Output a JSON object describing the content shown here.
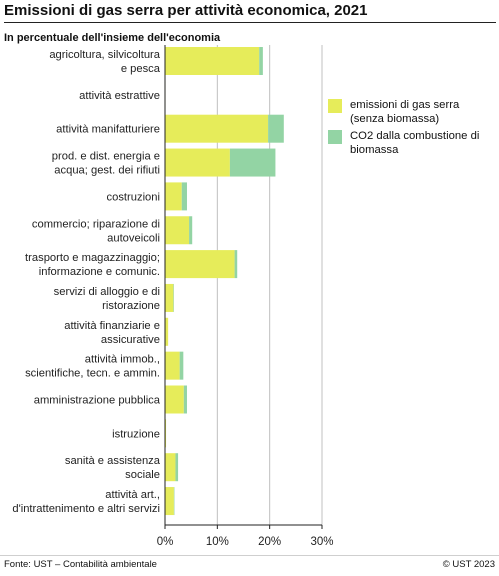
{
  "header": {
    "title": "Emissioni di gas serra per attività economica, 2021",
    "subtitle": "In percentuale dell'insieme dell'economia"
  },
  "colors": {
    "series1": "#e6ec5a",
    "series2": "#93d4a4",
    "grid": "#c0c0c0",
    "axis": "#222222"
  },
  "chart_data": {
    "type": "bar",
    "orientation": "horizontal",
    "stacked": true,
    "categories": [
      [
        "agricoltura, silvicoltura",
        "e pesca"
      ],
      [
        "attività estrattive"
      ],
      [
        "attività manifatturiere"
      ],
      [
        "prod. e dist. energia e",
        "acqua; gest. dei rifiuti"
      ],
      [
        "costruzioni"
      ],
      [
        "commercio; riparazione di",
        "autoveicoli"
      ],
      [
        "trasporto e magazzinaggio;",
        "informazione e comunic."
      ],
      [
        "servizi di alloggio e di",
        "ristorazione"
      ],
      [
        "attività finanziarie e",
        "assicurative"
      ],
      [
        "attività immob.,",
        "scientifiche, tecn. e ammin."
      ],
      [
        "amministrazione pubblica"
      ],
      [
        "istruzione"
      ],
      [
        "sanità e assistenza",
        "sociale"
      ],
      [
        "attività art.,",
        "d'intrattenimento e altri servizi"
      ]
    ],
    "series": [
      {
        "name": "emissioni di gas serra (senza biomassa)",
        "values": [
          18.0,
          0.1,
          19.7,
          12.4,
          3.2,
          4.6,
          13.3,
          1.6,
          0.6,
          2.8,
          3.6,
          0.2,
          2.0,
          1.7
        ]
      },
      {
        "name": "CO2 dalla combustione di biomassa",
        "values": [
          0.7,
          0.0,
          3.0,
          8.7,
          1.0,
          0.6,
          0.5,
          0.1,
          0.0,
          0.7,
          0.6,
          0.0,
          0.5,
          0.1
        ]
      }
    ],
    "xlim": [
      0,
      30
    ],
    "xticks": [
      0,
      10,
      20,
      30
    ],
    "xtick_labels": [
      "0%",
      "10%",
      "20%",
      "30%"
    ],
    "grid": true,
    "legend_position": "right"
  },
  "footer": {
    "source": "Fonte: UST – Contabilità ambientale",
    "copyright": "© UST 2023"
  }
}
